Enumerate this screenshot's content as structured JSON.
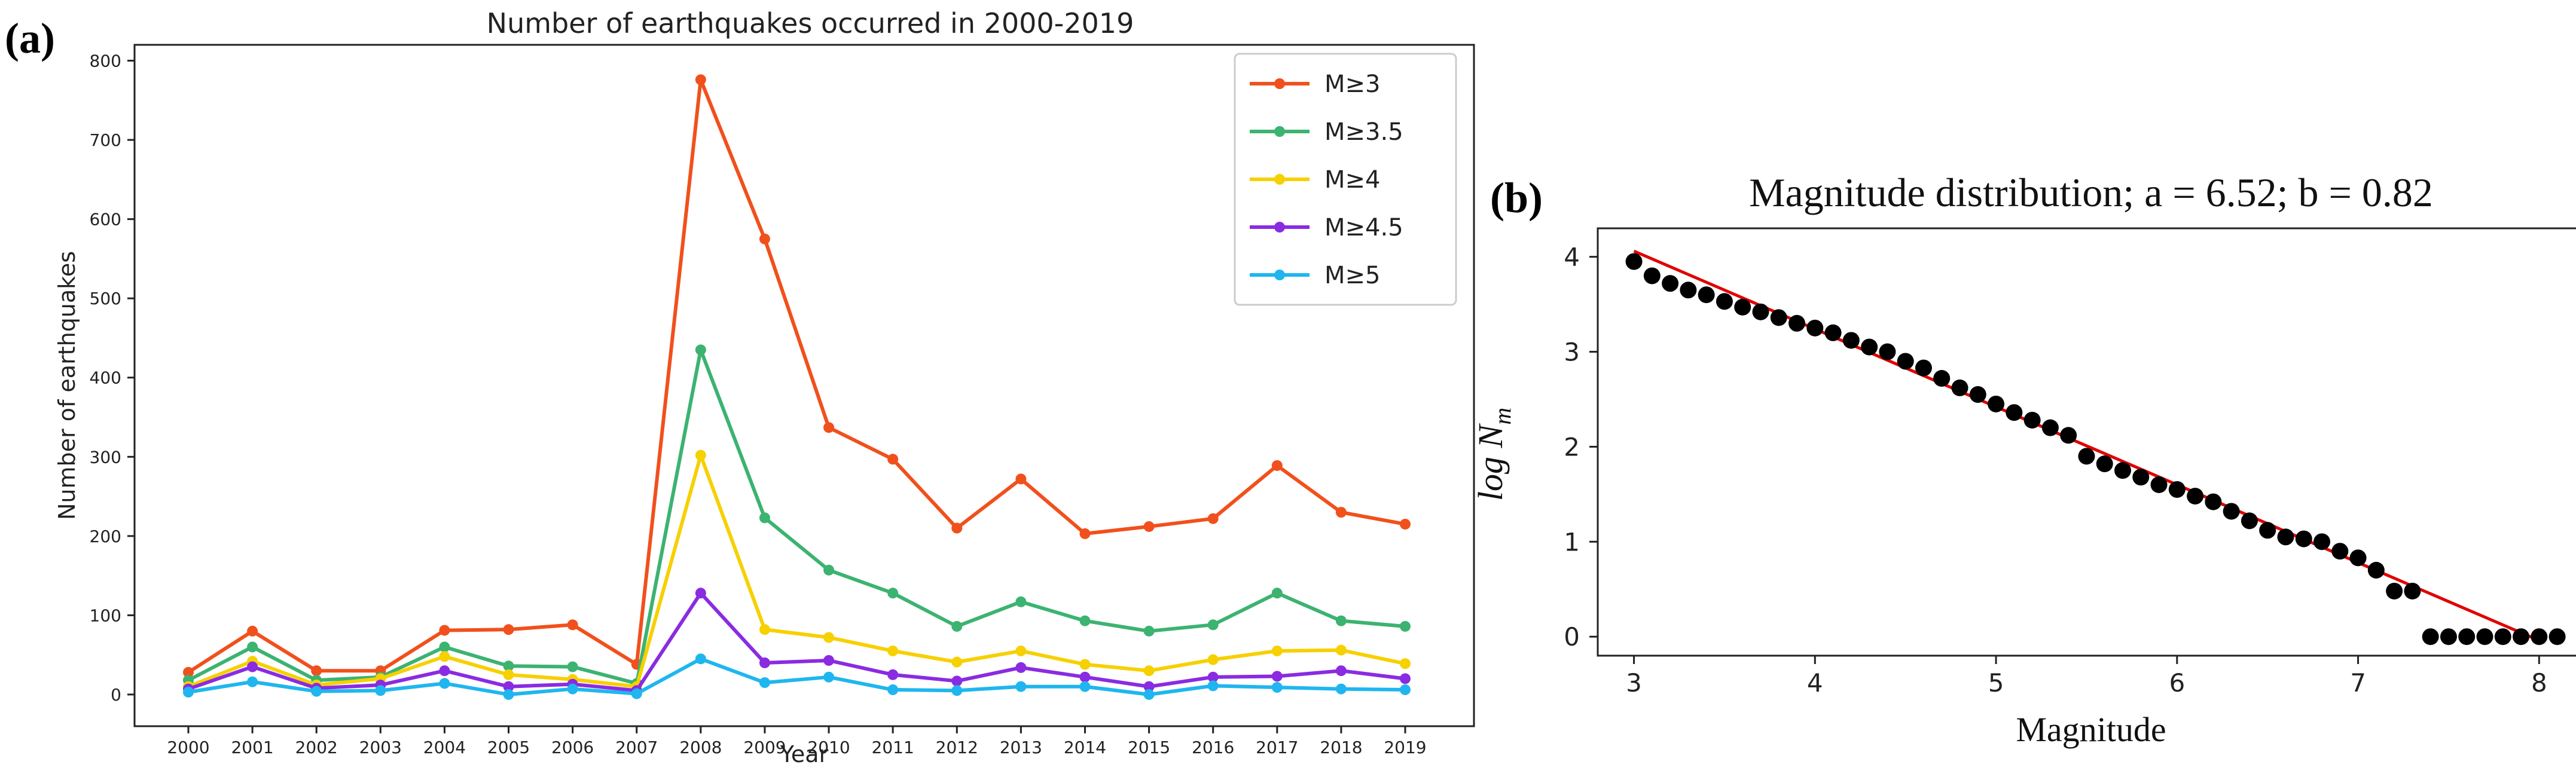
{
  "chart_data": [
    {
      "panel_label": "(a)",
      "type": "line",
      "title": "Number of earthquakes occurred in 2000-2019",
      "xlabel": "Year",
      "ylabel": "Number of earthquakes",
      "categories": [
        "2000",
        "2001",
        "2002",
        "2003",
        "2004",
        "2005",
        "2006",
        "2007",
        "2008",
        "2009",
        "2010",
        "2011",
        "2012",
        "2013",
        "2014",
        "2015",
        "2016",
        "2017",
        "2018",
        "2019"
      ],
      "ylim": [
        -40,
        820
      ],
      "yticks": [
        0,
        100,
        200,
        300,
        400,
        500,
        600,
        700,
        800
      ],
      "legend_position": "top-right",
      "series": [
        {
          "name": "M≥3",
          "color": "#f1501c",
          "values": [
            28,
            80,
            30,
            30,
            81,
            82,
            88,
            38,
            776,
            575,
            337,
            297,
            210,
            272,
            203,
            212,
            222,
            289,
            230,
            215
          ]
        },
        {
          "name": "M≥3.5",
          "color": "#3cb371",
          "values": [
            18,
            60,
            18,
            22,
            60,
            36,
            35,
            14,
            435,
            223,
            157,
            128,
            86,
            117,
            93,
            80,
            88,
            128,
            93,
            86
          ]
        },
        {
          "name": "M≥4",
          "color": "#f7d000",
          "values": [
            10,
            42,
            12,
            20,
            48,
            25,
            19,
            10,
            302,
            82,
            72,
            55,
            41,
            55,
            38,
            30,
            44,
            55,
            56,
            39
          ]
        },
        {
          "name": "M≥4.5",
          "color": "#8a2be2",
          "values": [
            7,
            35,
            8,
            12,
            30,
            10,
            13,
            5,
            128,
            40,
            43,
            25,
            17,
            34,
            22,
            10,
            22,
            23,
            30,
            20
          ]
        },
        {
          "name": "M≥5",
          "color": "#1fb6ef",
          "values": [
            3,
            16,
            4,
            5,
            14,
            0,
            7,
            1,
            45,
            15,
            22,
            6,
            5,
            10,
            10,
            0,
            11,
            9,
            7,
            6
          ]
        }
      ]
    },
    {
      "panel_label": "(b)",
      "type": "scatter",
      "title": "Magnitude distribution; a = 6.52; b = 0.82",
      "xlabel": "Magnitude",
      "ylabel_main": "log N",
      "ylabel_sub": "m",
      "xlim": [
        2.8,
        8.25
      ],
      "ylim": [
        -0.2,
        4.3
      ],
      "xticks": [
        3,
        4,
        5,
        6,
        7,
        8
      ],
      "yticks": [
        0,
        1,
        2,
        3,
        4
      ],
      "fit": {
        "a": 6.52,
        "b": 0.82,
        "x_range": [
          3.0,
          8.0
        ],
        "color": "#e00000"
      },
      "points": {
        "color": "#000000",
        "x": [
          3.0,
          3.1,
          3.2,
          3.3,
          3.4,
          3.5,
          3.6,
          3.7,
          3.8,
          3.9,
          4.0,
          4.1,
          4.2,
          4.3,
          4.4,
          4.5,
          4.6,
          4.7,
          4.8,
          4.9,
          5.0,
          5.1,
          5.2,
          5.3,
          5.4,
          5.5,
          5.6,
          5.7,
          5.8,
          5.9,
          6.0,
          6.1,
          6.2,
          6.3,
          6.4,
          6.5,
          6.6,
          6.7,
          6.8,
          6.9,
          7.0,
          7.1,
          7.2,
          7.3,
          7.4,
          7.5,
          7.6,
          7.7,
          7.8,
          7.9,
          8.0,
          8.1
        ],
        "y": [
          3.95,
          3.8,
          3.72,
          3.65,
          3.6,
          3.53,
          3.47,
          3.42,
          3.36,
          3.3,
          3.25,
          3.2,
          3.12,
          3.05,
          3.0,
          2.9,
          2.83,
          2.72,
          2.62,
          2.55,
          2.45,
          2.36,
          2.28,
          2.2,
          2.12,
          1.9,
          1.82,
          1.75,
          1.68,
          1.6,
          1.55,
          1.48,
          1.42,
          1.32,
          1.22,
          1.12,
          1.05,
          1.03,
          1.0,
          0.9,
          0.83,
          0.7,
          0.48,
          0.48,
          0.0,
          0.0,
          0.0,
          0.0,
          0.0,
          0.0,
          0.0,
          0.0
        ]
      }
    }
  ]
}
